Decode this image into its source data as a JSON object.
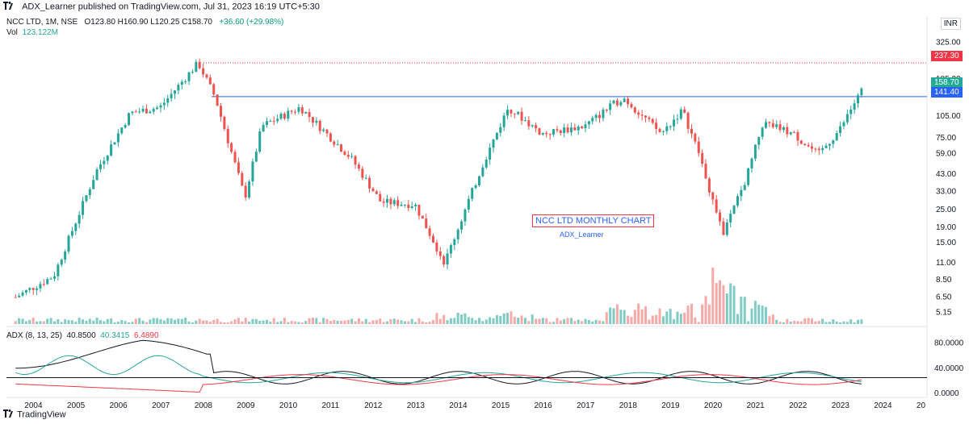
{
  "header": {
    "publisher_text": "ADX_Learner published on TradingView.com, Jul 31, 2023 16:19 UTC+5:30"
  },
  "legend": {
    "symbol": "NCC LTD, 1M, NSE",
    "values": "O123.80  H160.90  L120.25  C158.70",
    "change": "+36.60 (+29.98%)"
  },
  "volume": {
    "label": "Vol",
    "value": "123.122M"
  },
  "adx": {
    "label": "ADX (8, 13, 25)",
    "v1": "40.8500",
    "v2": "40.3415",
    "v3": "6.4890"
  },
  "currency": "INR",
  "price_tags": {
    "high": "237.30",
    "last": "158.70",
    "resistance": "141.40"
  },
  "annotation": {
    "title": "NCC LTD MONTHLY CHART",
    "author": "ADX_Learner"
  },
  "footer": {
    "brand": "TradingView"
  },
  "colors": {
    "up": "#26a69a",
    "down": "#ef5350",
    "vol_up": "#80cbc4",
    "vol_down": "#f7a9a7",
    "adx_line": "#131722",
    "di_plus": "#26a69a",
    "di_minus": "#f23645",
    "resistance": "#2962ff"
  },
  "chart_data": {
    "type": "candlestick",
    "scale": "log",
    "y_ticks": [
      "325.00",
      "237.30",
      "185.00",
      "158.70",
      "141.40",
      "105.00",
      "75.00",
      "59.00",
      "43.00",
      "33.00",
      "25.00",
      "19.00",
      "15.00",
      "11.00",
      "8.50",
      "6.50",
      "5.15"
    ],
    "y_tick_values": [
      325,
      237.3,
      185,
      158.7,
      141.4,
      105,
      75,
      59,
      43,
      33,
      25,
      19,
      15,
      11,
      8.5,
      6.5,
      5.15
    ],
    "x_ticks": [
      "2004",
      "2005",
      "2006",
      "2007",
      "2008",
      "2009",
      "2010",
      "2011",
      "2012",
      "2013",
      "2014",
      "2015",
      "2016",
      "2017",
      "2018",
      "2019",
      "2020",
      "2021",
      "2022",
      "2023",
      "2024",
      "20"
    ],
    "adx_ticks": [
      "80.0000",
      "40.0000",
      "0.0000"
    ],
    "adx_tick_values": [
      80,
      40,
      0
    ],
    "adx_threshold": 25,
    "resistance_level": 141.4,
    "all_time_high": 237.3,
    "key_prices": [
      {
        "year": 2003.6,
        "close": 6.5
      },
      {
        "year": 2004.5,
        "close": 9.0
      },
      {
        "year": 2005.5,
        "close": 45.0
      },
      {
        "year": 2006.3,
        "close": 110.0
      },
      {
        "year": 2007.0,
        "close": 120.0
      },
      {
        "year": 2007.9,
        "close": 237.3
      },
      {
        "year": 2008.3,
        "close": 140.0
      },
      {
        "year": 2009.0,
        "close": 30.0
      },
      {
        "year": 2009.4,
        "close": 90.0
      },
      {
        "year": 2010.3,
        "close": 120.0
      },
      {
        "year": 2011.5,
        "close": 55.0
      },
      {
        "year": 2012.2,
        "close": 28.0
      },
      {
        "year": 2013.0,
        "close": 27.0
      },
      {
        "year": 2013.7,
        "close": 11.0
      },
      {
        "year": 2014.6,
        "close": 50.0
      },
      {
        "year": 2015.2,
        "close": 120.0
      },
      {
        "year": 2016.0,
        "close": 80.0
      },
      {
        "year": 2017.0,
        "close": 90.0
      },
      {
        "year": 2017.9,
        "close": 140.0
      },
      {
        "year": 2018.8,
        "close": 80.0
      },
      {
        "year": 2019.3,
        "close": 115.0
      },
      {
        "year": 2019.7,
        "close": 58.0
      },
      {
        "year": 2020.25,
        "close": 17.0
      },
      {
        "year": 2020.8,
        "close": 40.0
      },
      {
        "year": 2021.2,
        "close": 95.0
      },
      {
        "year": 2021.9,
        "close": 80.0
      },
      {
        "year": 2022.5,
        "close": 58.0
      },
      {
        "year": 2023.0,
        "close": 85.0
      },
      {
        "year": 2023.3,
        "close": 121.0
      },
      {
        "year": 2023.55,
        "close": 158.7
      }
    ]
  }
}
